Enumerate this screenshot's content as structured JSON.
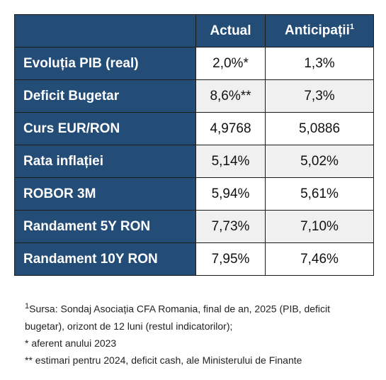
{
  "table": {
    "columns": [
      "Actual",
      "Anticipații"
    ],
    "note_mark": "1",
    "rows": [
      [
        "Evoluția PIB (real)",
        "2,0%*",
        "1,3%"
      ],
      [
        "Deficit Bugetar",
        "8,6%**",
        "7,3%"
      ],
      [
        "Curs EUR/RON",
        "4,9768",
        "5,0886"
      ],
      [
        "Rata inflației",
        "5,14%",
        "5,02%"
      ],
      [
        "ROBOR 3M",
        "5,94%",
        "5,61%"
      ],
      [
        "Randament 5Y RON",
        "7,73%",
        "7,10%"
      ],
      [
        "Randament 10Y RON",
        "7,95%",
        "7,46%"
      ]
    ]
  },
  "footnotes": {
    "source_mark": "1",
    "source": "Sursa: Sondaj Asociația CFA Romania, final de an, 2025 (PIB, deficit bugetar), orizont de 12 luni (restul indicatorilor);",
    "notes": [
      "* aferent anului 2023",
      "** estimari pentru 2024, deficit cash, ale Ministerului de Finante"
    ]
  }
}
